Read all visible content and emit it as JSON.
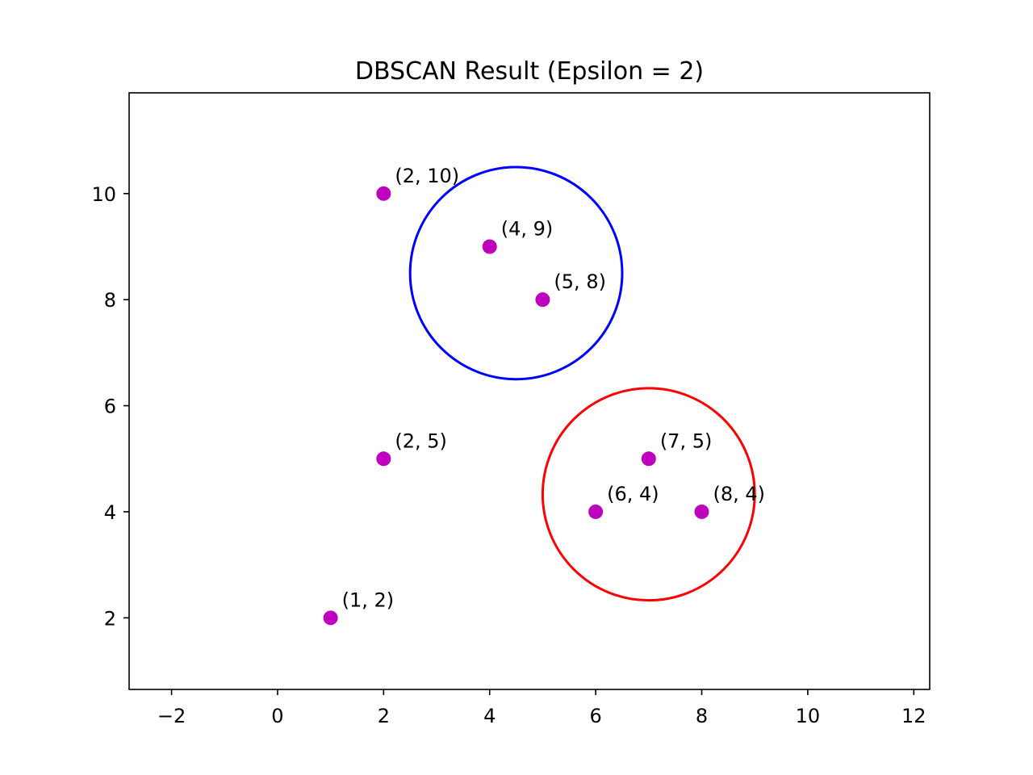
{
  "chart_data": {
    "type": "scatter",
    "title": "DBSCAN Result (Epsilon = 2)",
    "xlabel": "",
    "ylabel": "",
    "xlim": [
      -2.8,
      12.3
    ],
    "ylim": [
      0.65,
      11.9
    ],
    "xticks": [
      -2,
      0,
      2,
      4,
      6,
      8,
      10,
      12
    ],
    "xtick_labels": [
      "−2",
      "0",
      "2",
      "4",
      "6",
      "8",
      "10",
      "12"
    ],
    "yticks": [
      2,
      4,
      6,
      8,
      10
    ],
    "ytick_labels": [
      "2",
      "4",
      "6",
      "8",
      "10"
    ],
    "grid": false,
    "point_color": "#bf00bf",
    "points": [
      {
        "x": 2,
        "y": 10,
        "label": "(2, 10)"
      },
      {
        "x": 4,
        "y": 9,
        "label": "(4, 9)"
      },
      {
        "x": 5,
        "y": 8,
        "label": "(5, 8)"
      },
      {
        "x": 2,
        "y": 5,
        "label": "(2, 5)"
      },
      {
        "x": 7,
        "y": 5,
        "label": "(7, 5)"
      },
      {
        "x": 6,
        "y": 4,
        "label": "(6, 4)"
      },
      {
        "x": 8,
        "y": 4,
        "label": "(8, 4)"
      },
      {
        "x": 1,
        "y": 2,
        "label": "(1, 2)"
      }
    ],
    "circles": [
      {
        "cx": 4.5,
        "cy": 8.5,
        "r": 2,
        "color": "#0000ff"
      },
      {
        "cx": 7.0,
        "cy": 4.33,
        "r": 2,
        "color": "#ff0000"
      }
    ]
  }
}
